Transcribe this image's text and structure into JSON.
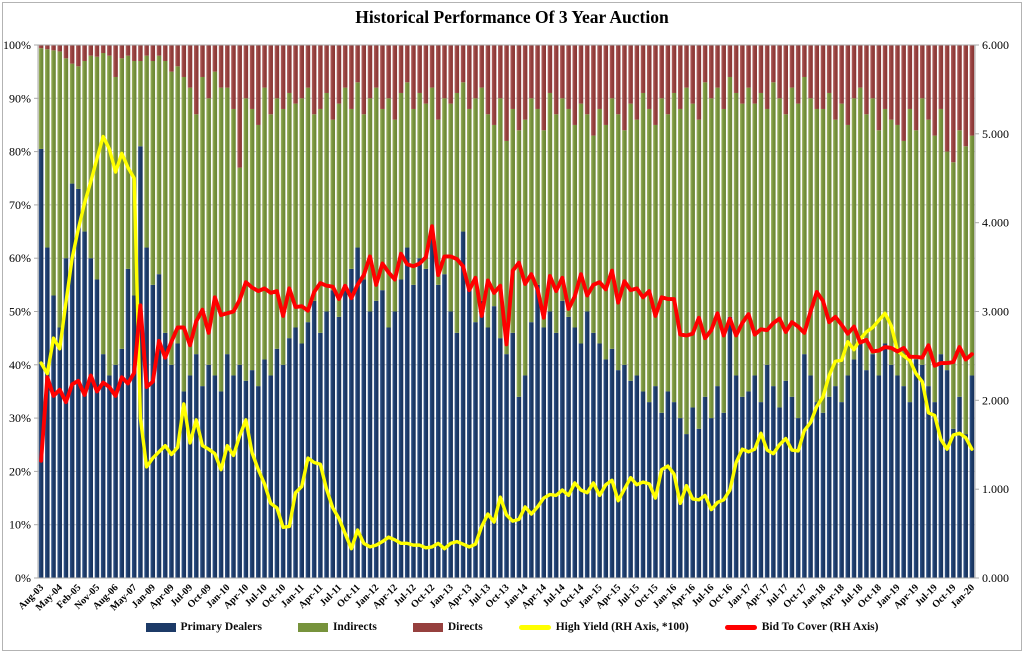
{
  "chart_data": {
    "type": "bar",
    "subtype": "stacked-100-bars-with-two-lines",
    "title": "Historical Performance Of 3 Year Auction",
    "n_auctions": 151,
    "x_tick_every_n_bars": 3,
    "x_tick_labels": [
      "Aug-03",
      "May-04",
      "Feb-05",
      "Nov-05",
      "Aug-06",
      "May-07",
      "Jan-09",
      "Apr-09",
      "Jul-09",
      "Oct-09",
      "Jan-10",
      "Apr-10",
      "Jul-10",
      "Oct-10",
      "Jan-11",
      "Apr-11",
      "Jul-11",
      "Oct-11",
      "Jan-12",
      "Apr-12",
      "Jul-12",
      "Oct-12",
      "Jan-13",
      "Apr-13",
      "Jul-13",
      "Oct-13",
      "Jan-14",
      "Apr-14",
      "Jul-14",
      "Oct-14",
      "Jan-15",
      "Apr-15",
      "Jul-15",
      "Oct-15",
      "Jan-16",
      "Apr-16",
      "Jul-16",
      "Oct-16",
      "Jan-17",
      "Apr-17",
      "Jul-17",
      "Oct-17",
      "Jan-18",
      "Apr-18",
      "Jul-18",
      "Oct-18",
      "Jan-19",
      "Apr-19",
      "Jul-19",
      "Oct-19",
      "Jan-20"
    ],
    "left_axis": {
      "min": 0,
      "max": 100,
      "ticks": [
        "0%",
        "10%",
        "20%",
        "30%",
        "40%",
        "50%",
        "60%",
        "70%",
        "80%",
        "90%",
        "100%"
      ]
    },
    "right_axis": {
      "min": 0,
      "max": 6,
      "ticks": [
        "0.000",
        "1.000",
        "2.000",
        "3.000",
        "4.000",
        "5.000",
        "6.000"
      ]
    },
    "series": {
      "primary_dealers_pct": [
        80.5,
        62,
        53,
        47,
        60,
        74,
        73,
        65,
        60,
        56,
        42,
        38,
        40,
        43,
        58,
        53,
        81,
        62,
        55,
        57,
        46,
        40,
        44,
        35,
        38,
        42,
        36,
        40,
        38,
        35,
        42,
        38,
        40,
        37,
        39,
        36,
        41,
        38,
        43,
        40,
        45,
        47,
        44,
        48,
        52,
        46,
        50,
        54,
        49,
        55,
        58,
        62,
        56,
        50,
        52,
        54,
        47,
        50,
        56,
        62,
        55,
        60,
        58,
        64,
        55,
        57,
        50,
        46,
        65,
        55,
        48,
        52,
        47,
        51,
        45,
        42,
        46,
        34,
        38,
        48,
        55,
        47,
        50,
        46,
        52,
        49,
        47,
        44,
        50,
        46,
        44,
        41,
        43,
        39,
        40,
        37,
        38,
        35,
        33,
        36,
        31,
        35,
        33,
        30,
        27,
        32,
        28,
        34,
        30,
        36,
        31,
        49,
        38,
        34,
        35,
        38,
        33,
        40,
        36,
        32,
        37,
        34,
        30,
        42,
        38,
        33,
        31,
        34,
        36,
        33,
        38,
        41,
        45,
        39,
        42,
        38,
        44,
        40,
        38,
        36,
        33,
        41,
        40,
        36,
        33,
        42,
        39,
        28,
        34,
        27,
        38
      ],
      "indirects_pct": [
        18.9,
        37.2,
        46,
        51.8,
        37.5,
        22.5,
        23,
        32,
        38,
        41.8,
        56.5,
        60,
        54,
        54.5,
        40,
        44,
        16,
        36,
        42,
        41,
        51,
        55,
        52,
        59,
        54,
        45,
        58,
        50,
        57,
        57,
        50,
        50,
        37,
        53,
        49,
        49,
        51,
        49,
        47,
        48,
        46,
        42,
        46,
        44,
        35,
        42,
        41,
        32,
        40,
        37,
        30,
        31,
        31,
        40,
        40,
        34,
        43,
        36,
        35,
        31,
        33,
        31,
        31,
        28,
        31,
        33,
        39,
        45,
        28,
        33,
        42,
        40,
        40,
        34,
        45,
        40,
        42,
        50,
        48,
        42,
        33,
        37,
        41,
        41,
        38,
        39,
        38,
        45,
        37,
        37,
        44,
        44,
        47,
        48,
        44,
        52,
        48,
        56,
        55,
        49,
        59,
        52,
        58,
        58,
        65,
        57,
        58,
        59,
        60,
        56,
        57,
        45,
        53,
        55,
        57,
        51,
        58,
        48,
        57,
        58,
        50,
        58,
        59,
        52,
        52,
        55,
        57,
        57,
        50,
        56,
        47,
        49,
        47,
        48,
        48,
        46,
        44,
        46,
        47,
        46,
        55,
        43,
        50,
        50,
        50,
        46,
        41,
        50,
        50,
        54,
        45
      ],
      "directs_pct": [
        0.6,
        0.8,
        1,
        1.2,
        2.5,
        3.5,
        4,
        3,
        2,
        2.2,
        1.5,
        2,
        6,
        2.5,
        2,
        3,
        3,
        2,
        3,
        2,
        3,
        5,
        4,
        6,
        8,
        13,
        6,
        10,
        5,
        8,
        8,
        12,
        23,
        10,
        12,
        15,
        8,
        13,
        10,
        12,
        9,
        11,
        10,
        8,
        13,
        12,
        9,
        14,
        11,
        8,
        12,
        7,
        13,
        10,
        8,
        12,
        10,
        14,
        9,
        7,
        12,
        9,
        11,
        8,
        14,
        10,
        11,
        9,
        7,
        12,
        10,
        8,
        13,
        15,
        10,
        18,
        12,
        16,
        14,
        10,
        12,
        16,
        9,
        13,
        10,
        12,
        15,
        11,
        13,
        17,
        12,
        15,
        10,
        13,
        16,
        11,
        14,
        9,
        12,
        15,
        10,
        13,
        9,
        12,
        8,
        11,
        14,
        7,
        10,
        8,
        12,
        6,
        9,
        11,
        8,
        11,
        9,
        12,
        7,
        10,
        13,
        8,
        11,
        6,
        10,
        12,
        12,
        9,
        14,
        11,
        15,
        10,
        8,
        13,
        10,
        16,
        12,
        14,
        15,
        18,
        12,
        16,
        10,
        14,
        17,
        12,
        20,
        22,
        16,
        19,
        17
      ],
      "high_yield_rh": [
        2.42,
        2.3,
        2.7,
        2.58,
        3.1,
        3.6,
        3.93,
        4.22,
        4.46,
        4.72,
        4.97,
        4.83,
        4.57,
        4.78,
        4.62,
        4.5,
        1.8,
        1.25,
        1.35,
        1.42,
        1.49,
        1.39,
        1.47,
        1.96,
        1.52,
        1.78,
        1.49,
        1.45,
        1.4,
        1.22,
        1.49,
        1.38,
        1.6,
        1.78,
        1.41,
        1.22,
        1.06,
        0.84,
        0.79,
        0.57,
        0.58,
        0.96,
        1.03,
        1.35,
        1.3,
        1.28,
        1.0,
        0.79,
        0.67,
        0.5,
        0.33,
        0.54,
        0.39,
        0.35,
        0.37,
        0.41,
        0.46,
        0.43,
        0.39,
        0.39,
        0.37,
        0.37,
        0.34,
        0.35,
        0.39,
        0.33,
        0.39,
        0.41,
        0.38,
        0.35,
        0.38,
        0.58,
        0.72,
        0.63,
        0.91,
        0.71,
        0.64,
        0.66,
        0.8,
        0.72,
        0.8,
        0.9,
        0.94,
        0.93,
        0.99,
        0.93,
        1.07,
        0.99,
        0.96,
        1.07,
        0.93,
        1.05,
        1.1,
        0.87,
        1.0,
        1.13,
        1.05,
        1.08,
        1.06,
        0.9,
        1.22,
        1.26,
        1.17,
        0.84,
        1.04,
        0.89,
        0.88,
        0.93,
        0.77,
        0.85,
        0.88,
        0.99,
        1.3,
        1.45,
        1.42,
        1.45,
        1.63,
        1.44,
        1.4,
        1.5,
        1.57,
        1.44,
        1.43,
        1.66,
        1.75,
        1.93,
        2.04,
        2.28,
        2.44,
        2.45,
        2.66,
        2.57,
        2.69,
        2.77,
        2.82,
        2.9,
        2.98,
        2.84,
        2.56,
        2.5,
        2.45,
        2.3,
        2.21,
        1.86,
        1.83,
        1.56,
        1.45,
        1.61,
        1.63,
        1.58,
        1.45
      ],
      "bid_to_cover_rh": [
        1.32,
        2.26,
        2.05,
        2.12,
        1.98,
        2.18,
        2.22,
        2.06,
        2.28,
        2.1,
        2.2,
        2.15,
        2.05,
        2.26,
        2.19,
        2.31,
        3.07,
        2.15,
        2.21,
        2.67,
        2.48,
        2.66,
        2.82,
        2.82,
        2.62,
        2.89,
        3.02,
        2.76,
        3.16,
        2.96,
        2.98,
        3.0,
        3.13,
        3.33,
        3.27,
        3.23,
        3.26,
        3.21,
        3.23,
        2.95,
        3.26,
        3.05,
        3.06,
        3.01,
        3.22,
        3.32,
        3.29,
        3.28,
        3.14,
        3.29,
        3.15,
        3.3,
        3.41,
        3.62,
        3.3,
        3.54,
        3.44,
        3.36,
        3.65,
        3.53,
        3.51,
        3.54,
        3.61,
        3.96,
        3.41,
        3.62,
        3.62,
        3.59,
        3.51,
        3.24,
        3.38,
        2.95,
        3.35,
        3.21,
        3.29,
        2.63,
        3.46,
        3.55,
        3.31,
        3.42,
        3.25,
        2.93,
        3.4,
        3.23,
        3.38,
        3.03,
        3.17,
        3.42,
        3.18,
        3.3,
        3.33,
        3.25,
        3.46,
        3.1,
        3.34,
        3.24,
        3.26,
        3.16,
        3.23,
        2.95,
        3.16,
        3.14,
        3.14,
        2.74,
        2.73,
        2.75,
        2.93,
        2.7,
        2.79,
        2.98,
        2.73,
        2.92,
        2.73,
        2.87,
        2.97,
        2.74,
        2.8,
        2.79,
        2.87,
        2.92,
        2.77,
        2.88,
        2.83,
        2.76,
        3.0,
        3.22,
        3.12,
        2.88,
        2.94,
        2.85,
        2.75,
        2.83,
        2.65,
        2.68,
        2.55,
        2.56,
        2.6,
        2.59,
        2.55,
        2.59,
        2.49,
        2.49,
        2.48,
        2.62,
        2.39,
        2.42,
        2.42,
        2.43,
        2.6,
        2.46,
        2.52
      ]
    },
    "legend": [
      {
        "label": "Primary Dealers",
        "marker": "bar",
        "color": "#1C3A67"
      },
      {
        "label": "Indirects",
        "marker": "bar",
        "color": "#77933C"
      },
      {
        "label": "Directs",
        "marker": "bar",
        "color": "#96403E"
      },
      {
        "label": "High Yield (RH Axis, *100)",
        "marker": "line",
        "color": "#FFFF00"
      },
      {
        "label": "Bid To Cover (RH Axis)",
        "marker": "line",
        "color": "#FF0000"
      }
    ],
    "colors": {
      "primary_dealers": "#1C3A67",
      "indirects": "#77933C",
      "directs": "#96403E",
      "high_yield_line": "#FFFF00",
      "bid_to_cover_line": "#FF0000",
      "gridline": "#C8C8C8",
      "plot_border": "#A9A9A9",
      "background": "#FFFFFF"
    },
    "legend_position": "bottom",
    "grid": "horizontal-only"
  }
}
